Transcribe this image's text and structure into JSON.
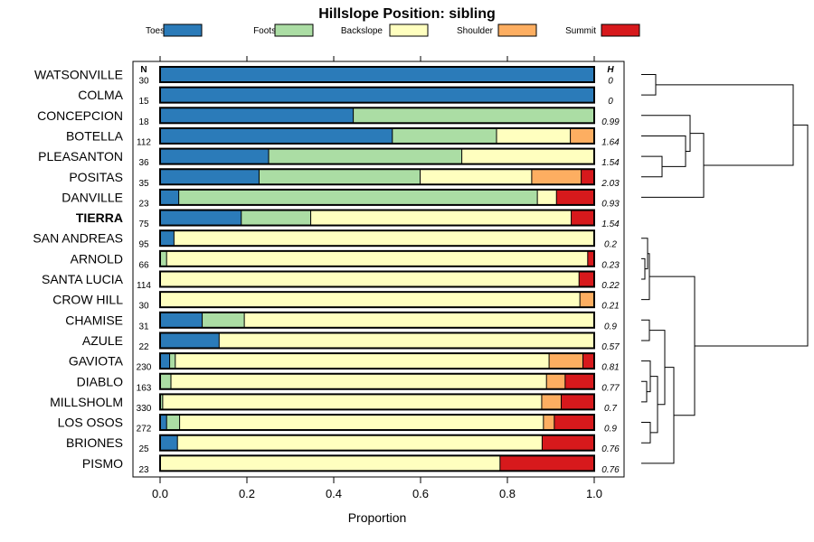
{
  "chart_data": {
    "type": "bar",
    "orientation": "horizontal",
    "stacked": true,
    "title": "Hillslope Position: sibling",
    "xlabel": "Proportion",
    "ylabel": "",
    "xlim": [
      0,
      1
    ],
    "xticks": [
      "0.0",
      "0.2",
      "0.4",
      "0.6",
      "0.8",
      "1.0"
    ],
    "legend_position": "top",
    "n_header": "N",
    "h_header": "H",
    "highlight_category": "TIERRA",
    "series": [
      {
        "name": "Toeslope",
        "color": "#2b7bb9"
      },
      {
        "name": "Footslope",
        "color": "#abdda4"
      },
      {
        "name": "Backslope",
        "color": "#ffffbf"
      },
      {
        "name": "Shoulder",
        "color": "#fdae61"
      },
      {
        "name": "Summit",
        "color": "#d7191c"
      }
    ],
    "categories": [
      {
        "name": "WATSONVILLE",
        "n": "30",
        "h": "0",
        "values": [
          1.0,
          0,
          0,
          0,
          0
        ]
      },
      {
        "name": "COLMA",
        "n": "15",
        "h": "0",
        "values": [
          1.0,
          0,
          0,
          0,
          0
        ]
      },
      {
        "name": "CONCEPCION",
        "n": "18",
        "h": "0.99",
        "values": [
          0.445,
          0.555,
          0,
          0,
          0
        ]
      },
      {
        "name": "BOTELLA",
        "n": "112",
        "h": "1.64",
        "values": [
          0.535,
          0.24,
          0.17,
          0.055,
          0
        ]
      },
      {
        "name": "PLEASANTON",
        "n": "36",
        "h": "1.54",
        "values": [
          0.25,
          0.445,
          0.305,
          0,
          0
        ]
      },
      {
        "name": "POSITAS",
        "n": "35",
        "h": "2.03",
        "values": [
          0.228,
          0.371,
          0.257,
          0.114,
          0.03
        ]
      },
      {
        "name": "DANVILLE",
        "n": "23",
        "h": "0.93",
        "values": [
          0.043,
          0.826,
          0.044,
          0,
          0.087
        ]
      },
      {
        "name": "TIERRA",
        "n": "75",
        "h": "1.54",
        "values": [
          0.187,
          0.16,
          0.6,
          0,
          0.053
        ]
      },
      {
        "name": "SAN ANDREAS",
        "n": "95",
        "h": "0.2",
        "values": [
          0.032,
          0,
          0.968,
          0,
          0
        ]
      },
      {
        "name": "ARNOLD",
        "n": "66",
        "h": "0.23",
        "values": [
          0,
          0.015,
          0.97,
          0,
          0.015
        ]
      },
      {
        "name": "SANTA LUCIA",
        "n": "114",
        "h": "0.22",
        "values": [
          0,
          0,
          0.965,
          0,
          0.035
        ]
      },
      {
        "name": "CROW HILL",
        "n": "30",
        "h": "0.21",
        "values": [
          0,
          0,
          0.967,
          0.033,
          0
        ]
      },
      {
        "name": "CHAMISE",
        "n": "31",
        "h": "0.9",
        "values": [
          0.097,
          0.097,
          0.806,
          0,
          0
        ]
      },
      {
        "name": "AZULE",
        "n": "22",
        "h": "0.57",
        "values": [
          0.136,
          0,
          0.864,
          0,
          0
        ]
      },
      {
        "name": "GAVIOTA",
        "n": "230",
        "h": "0.81",
        "values": [
          0.022,
          0.013,
          0.861,
          0.078,
          0.026
        ]
      },
      {
        "name": "DIABLO",
        "n": "163",
        "h": "0.77",
        "values": [
          0,
          0.025,
          0.865,
          0.043,
          0.067
        ]
      },
      {
        "name": "MILLSHOLM",
        "n": "330",
        "h": "0.7",
        "values": [
          0,
          0.006,
          0.873,
          0.045,
          0.076
        ]
      },
      {
        "name": "LOS OSOS",
        "n": "272",
        "h": "0.9",
        "values": [
          0.015,
          0.03,
          0.838,
          0.025,
          0.092
        ]
      },
      {
        "name": "BRIONES",
        "n": "25",
        "h": "0.76",
        "values": [
          0.04,
          0,
          0.84,
          0,
          0.12
        ]
      },
      {
        "name": "PISMO",
        "n": "23",
        "h": "0.76",
        "values": [
          0,
          0,
          0.783,
          0,
          0.217
        ]
      }
    ]
  }
}
